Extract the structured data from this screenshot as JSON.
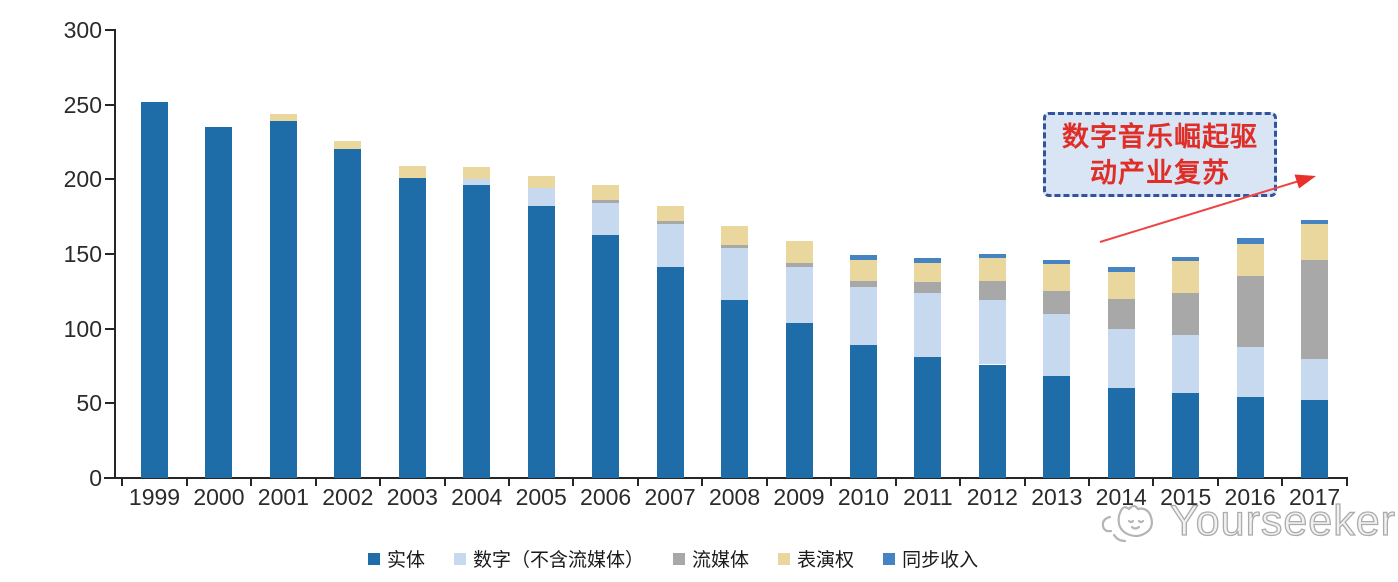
{
  "chart_data": {
    "type": "bar",
    "stacked": true,
    "title": "",
    "categories": [
      "1999",
      "2000",
      "2001",
      "2002",
      "2003",
      "2004",
      "2005",
      "2006",
      "2007",
      "2008",
      "2009",
      "2010",
      "2011",
      "2012",
      "2013",
      "2014",
      "2015",
      "2016",
      "2017"
    ],
    "series": [
      {
        "name": "实体",
        "color": "#1E6CA8",
        "values": [
          252,
          235,
          239,
          220,
          201,
          196,
          182,
          163,
          141,
          119,
          104,
          89,
          81,
          76,
          68,
          60,
          57,
          54,
          52
        ]
      },
      {
        "name": "数字（不含流媒体）",
        "color": "#C6D9EE",
        "values": [
          0,
          0,
          0,
          0,
          0,
          4,
          12,
          21,
          29,
          35,
          37,
          39,
          43,
          43,
          42,
          40,
          39,
          34,
          28
        ]
      },
      {
        "name": "流媒体",
        "color": "#A8A8A8",
        "values": [
          0,
          0,
          0,
          0,
          0,
          0,
          0,
          2,
          2,
          2,
          3,
          4,
          7,
          13,
          15,
          20,
          28,
          47,
          66
        ]
      },
      {
        "name": "表演权",
        "color": "#EAD79E",
        "values": [
          0,
          0,
          5,
          6,
          8,
          8,
          8,
          10,
          10,
          13,
          15,
          14,
          13,
          15,
          18,
          18,
          21,
          22,
          24
        ]
      },
      {
        "name": "同步收入",
        "color": "#4583C2",
        "values": [
          0,
          0,
          0,
          0,
          0,
          0,
          0,
          0,
          0,
          0,
          0,
          3,
          3,
          3,
          3,
          3,
          3,
          4,
          3
        ]
      }
    ],
    "ylim": [
      0,
      300
    ],
    "yticks": [
      0,
      50,
      100,
      150,
      200,
      250,
      300
    ],
    "grid": false,
    "legend_position": "bottom"
  },
  "annotation": {
    "line1": "数字音乐崛起驱",
    "line2": "动产业复苏",
    "text_color": "#DF2E28",
    "border_color": "#33549B",
    "fill_color": "#D9E5F4",
    "arrow_color": "#ED4545",
    "arrowhead_color": "#E8312B"
  },
  "watermark": {
    "text": "Yourseeker",
    "color": "#ABABAB"
  }
}
